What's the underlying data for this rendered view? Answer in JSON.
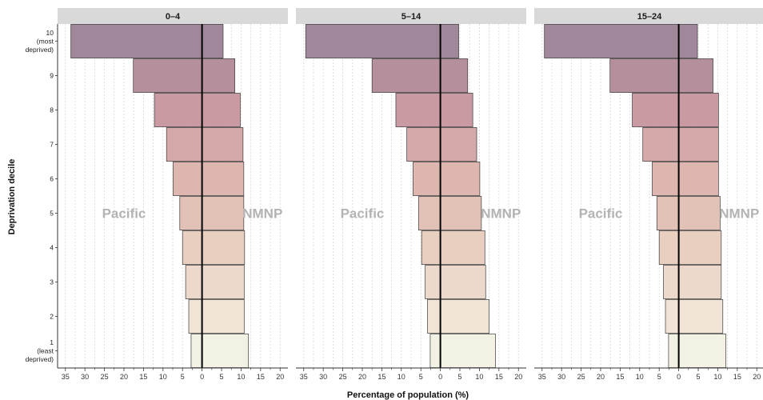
{
  "chart_data": {
    "type": "bar",
    "orientation": "horizontal-population-pyramid",
    "xlabel": "Percentage of population (%)",
    "ylabel": "Deprivation decile",
    "x_tick_labels": [
      "35",
      "30",
      "25",
      "20",
      "15",
      "10",
      "5",
      "0",
      "5",
      "10",
      "15",
      "20"
    ],
    "xlim": [
      -37,
      22
    ],
    "grid": "vertical dashed",
    "categories": [
      "1",
      "2",
      "3",
      "4",
      "5",
      "6",
      "7",
      "8",
      "9",
      "10"
    ],
    "category_labels": [
      [
        "1",
        "(least",
        "deprived)"
      ],
      [
        "2"
      ],
      [
        "3"
      ],
      [
        "4"
      ],
      [
        "5"
      ],
      [
        "6"
      ],
      [
        "7"
      ],
      [
        "8"
      ],
      [
        "9"
      ],
      [
        "10",
        "(most",
        "deprived)"
      ]
    ],
    "side_labels": {
      "left": "Pacific",
      "right": "NMNP"
    },
    "colors": [
      "#f3f1e4",
      "#f1e4d6",
      "#ecd9cb",
      "#e8cfc0",
      "#e2c2b6",
      "#ddb6af",
      "#d5a8a9",
      "#c99aa1",
      "#b58f9c",
      "#a0879a"
    ],
    "panels": [
      {
        "title": "0–4",
        "series": [
          {
            "name": "Pacific",
            "values": [
              2.8,
              3.4,
              4.2,
              5.0,
              5.7,
              7.4,
              9.1,
              12.2,
              17.6,
              33.6
            ]
          },
          {
            "name": "NMNP",
            "values": [
              11.9,
              10.8,
              10.8,
              10.9,
              10.7,
              10.7,
              10.5,
              9.8,
              8.4,
              5.4
            ]
          }
        ]
      },
      {
        "title": "5–14",
        "series": [
          {
            "name": "Pacific",
            "values": [
              2.6,
              3.3,
              3.9,
              4.8,
              5.6,
              7.0,
              8.6,
              11.4,
              17.5,
              34.5
            ]
          },
          {
            "name": "NMNP",
            "values": [
              14.1,
              12.5,
              11.6,
              11.4,
              10.5,
              10.1,
              9.3,
              8.3,
              7.0,
              4.7
            ]
          }
        ]
      },
      {
        "title": "15–24",
        "series": [
          {
            "name": "Pacific",
            "values": [
              2.6,
              3.4,
              3.9,
              5.0,
              5.6,
              6.8,
              9.2,
              11.9,
              17.6,
              34.4
            ]
          },
          {
            "name": "NMNP",
            "values": [
              12.1,
              11.3,
              10.9,
              10.9,
              10.6,
              10.2,
              10.2,
              10.2,
              8.8,
              4.8
            ]
          }
        ]
      }
    ]
  }
}
